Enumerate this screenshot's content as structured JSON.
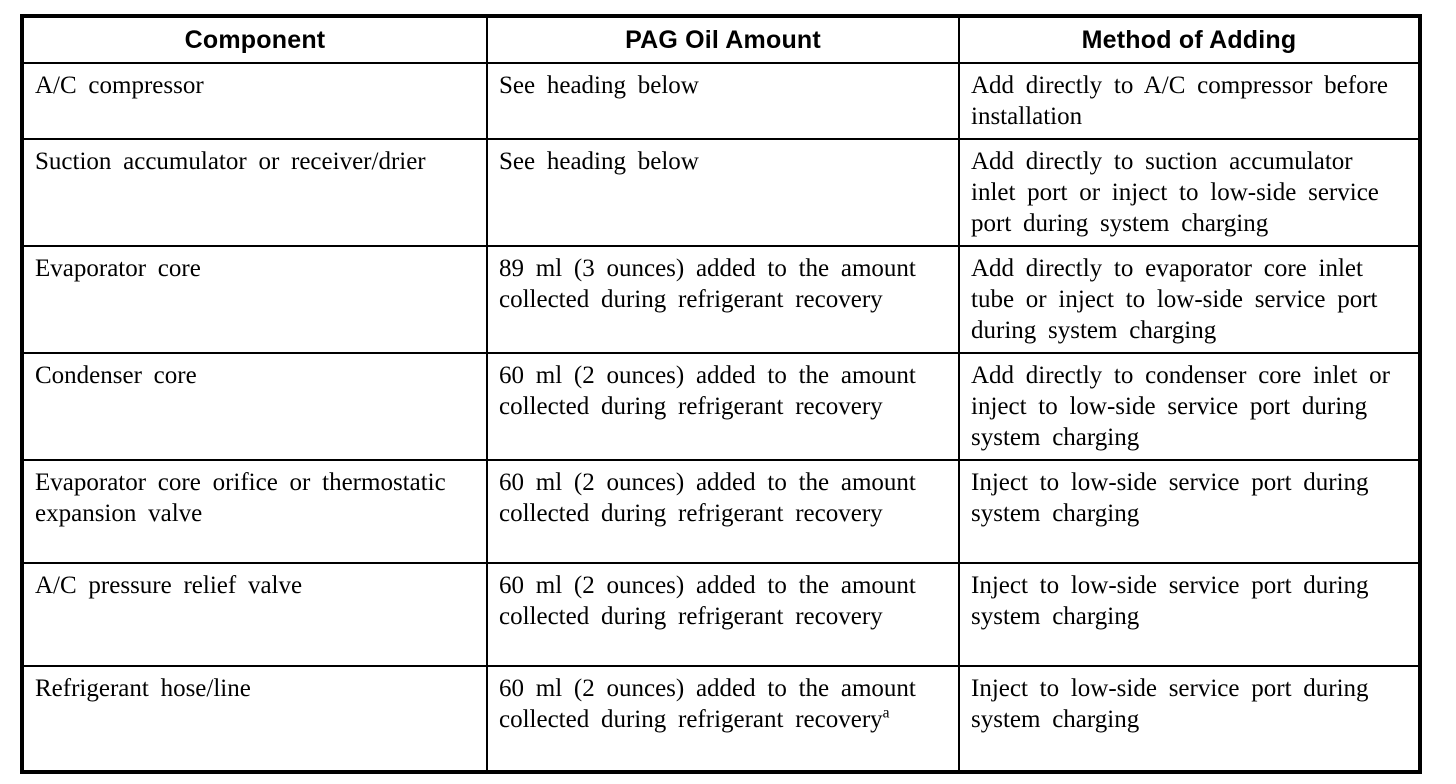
{
  "table": {
    "headers": {
      "component": "Component",
      "amount": "PAG Oil Amount",
      "method": "Method of Adding"
    },
    "rows": [
      {
        "component": "A/C compressor",
        "amount": "See heading below",
        "method": "Add directly to A/C compressor before installation"
      },
      {
        "component": "Suction accumulator or receiver/drier",
        "amount": "See heading below",
        "method": "Add directly to suction accumulator inlet port or inject to low-side service port during system charging"
      },
      {
        "component": "Evaporator core",
        "amount": "89 ml (3 ounces) added to the amount collected during refrigerant recovery",
        "method": "Add directly to evaporator core inlet tube or inject to low-side service port during system charging"
      },
      {
        "component": "Condenser core",
        "amount": "60 ml (2 ounces) added to the amount collected during refrigerant recovery",
        "method": "Add directly to condenser core inlet or inject to low-side service port during system charging"
      },
      {
        "component": "Evaporator core orifice or thermostatic expansion valve",
        "amount": "60 ml (2 ounces) added to the amount collected during refrigerant recovery",
        "method": "Inject to low-side service port during system charging"
      },
      {
        "component": "A/C pressure relief valve",
        "amount": "60 ml (2 ounces) added to the amount collected during refrigerant recovery",
        "method": "Inject to low-side service port during system charging"
      },
      {
        "component": "Refrigerant hose/line",
        "amount": "60 ml (2 ounces) added to the amount collected during refrigerant recovery",
        "amount_sup": "a",
        "method": "Inject to low-side service port during system charging"
      }
    ],
    "colors": {
      "border": "#000000",
      "text": "#000000",
      "background": "#ffffff"
    }
  }
}
